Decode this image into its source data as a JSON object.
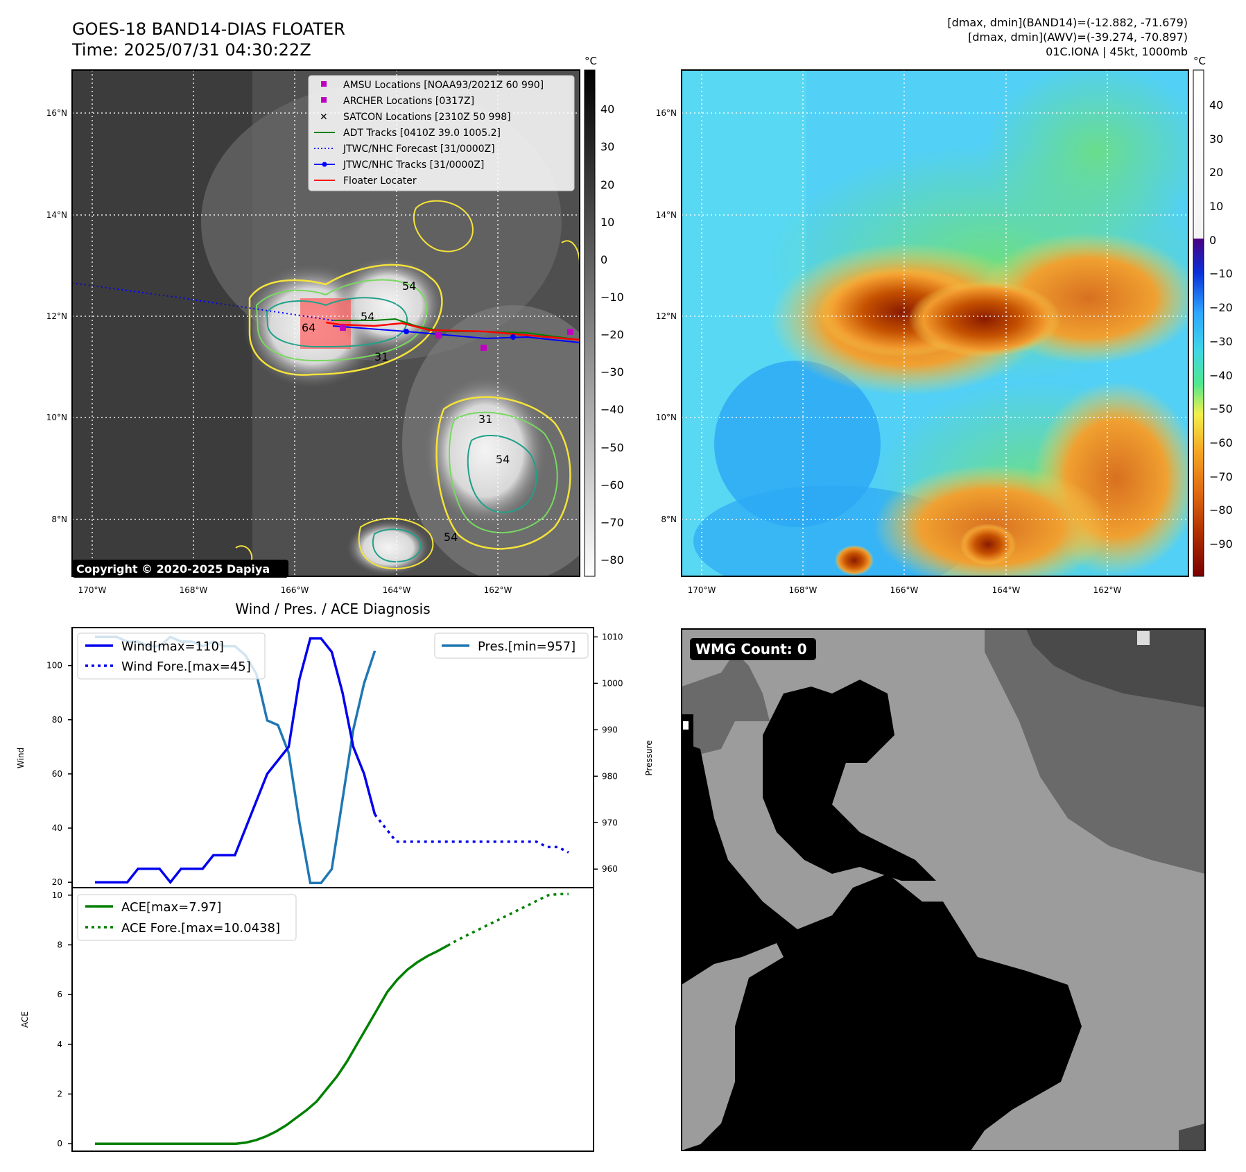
{
  "header": {
    "title_line1": "GOES-18 BAND14-DIAS FLOATER",
    "title_line2": "Time: 2025/07/31 04:30:22Z",
    "info_line1": "[dmax, dmin](BAND14)=(-12.882, -71.679)",
    "info_line2": "[dmax, dmin](AWV)=(-39.274, -70.897)",
    "info_line3": "01C.IONA | 45kt, 1000mb"
  },
  "copyright": "Copyright © 2020-2025 Dapiya",
  "map": {
    "lat_labels": [
      "16°N",
      "14°N",
      "12°N",
      "10°N",
      "8°N"
    ],
    "lon_labels": [
      "170°W",
      "168°W",
      "166°W",
      "164°W",
      "162°W"
    ],
    "contour_labels": [
      "64",
      "54",
      "54",
      "54",
      "31",
      "31",
      "54"
    ]
  },
  "legend_map": [
    {
      "label": "AMSU Locations [NOAA93/2021Z 60 990]",
      "color": "#bf00bf",
      "marker": "square"
    },
    {
      "label": "ARCHER Locations [0317Z]",
      "color": "#bf00bf",
      "marker": "square"
    },
    {
      "label": "SATCON Locations [2310Z 50 998]",
      "color": "#17becf",
      "marker": "x"
    },
    {
      "label": "ADT Tracks [0410Z 39.0 1005.2]",
      "color": "#008000",
      "marker": "line"
    },
    {
      "label": "JTWC/NHC Forecast [31/0000Z]",
      "color": "#0000ff",
      "marker": "dotted"
    },
    {
      "label": "JTWC/NHC Tracks [31/0000Z]",
      "color": "#0000ff",
      "marker": "line-dot"
    },
    {
      "label": "Floater Locater",
      "color": "#ff0000",
      "marker": "line"
    }
  ],
  "colorbar_left": {
    "unit": "°C",
    "ticks": [
      "40",
      "30",
      "20",
      "10",
      "0",
      "−10",
      "−20",
      "−30",
      "−40",
      "−50",
      "−60",
      "−70",
      "−80"
    ]
  },
  "colorbar_right": {
    "unit": "°C",
    "ticks": [
      "40",
      "30",
      "20",
      "10",
      "0",
      "−10",
      "−20",
      "−30",
      "−40",
      "−50",
      "−60",
      "−70",
      "−80",
      "−90"
    ]
  },
  "wmg": {
    "label": "WMG Count: 0"
  },
  "chart_data": [
    {
      "type": "line",
      "title": "Wind / Pres. / ACE Diagnosis",
      "ylabel": "Wind",
      "y2label": "Pressure",
      "ylim": [
        18,
        114
      ],
      "y2lim": [
        956,
        1012
      ],
      "yticks": [
        20,
        40,
        60,
        80,
        100
      ],
      "y2ticks": [
        960,
        970,
        980,
        990,
        1000,
        1010
      ],
      "legend_left": [
        "Wind[max=110]",
        "Wind Fore.[max=45]"
      ],
      "legend_right": [
        "Pres.[min=957]"
      ],
      "series": [
        {
          "name": "Wind[max=110]",
          "color": "#0000ee",
          "style": "solid",
          "values": [
            20,
            20,
            20,
            20,
            25,
            25,
            25,
            20,
            25,
            25,
            25,
            30,
            30,
            30,
            40,
            50,
            60,
            65,
            70,
            95,
            110,
            110,
            105,
            90,
            70,
            60,
            45
          ]
        },
        {
          "name": "Wind Fore.[max=45]",
          "color": "#0000ee",
          "style": "dotted",
          "values": [
            45,
            40,
            35,
            35,
            35,
            35,
            35,
            35,
            35,
            35,
            35,
            35,
            35,
            35,
            35,
            35,
            33,
            33,
            31
          ]
        },
        {
          "name": "Pres.[min=957]",
          "color": "#1f77b4",
          "style": "solid",
          "values": [
            1010,
            1010,
            1010,
            1009,
            1009,
            1008,
            1008,
            1010,
            1009,
            1009,
            1008,
            1009,
            1008,
            1008,
            1006,
            1002,
            992,
            991,
            985,
            970,
            957,
            957,
            960,
            975,
            990,
            1000,
            1007
          ]
        }
      ]
    },
    {
      "type": "line",
      "ylabel": "ACE",
      "ylim": [
        -0.3,
        10.3
      ],
      "yticks": [
        0,
        2,
        4,
        6,
        8,
        10
      ],
      "legend": [
        "ACE[max=7.97]",
        "ACE Fore.[max=10.0438]"
      ],
      "series": [
        {
          "name": "ACE[max=7.97]",
          "color": "#008000",
          "style": "solid",
          "values": [
            0,
            0,
            0,
            0,
            0,
            0,
            0,
            0,
            0,
            0,
            0,
            0,
            0,
            0,
            0,
            0.05,
            0.15,
            0.3,
            0.5,
            0.75,
            1.05,
            1.35,
            1.7,
            2.2,
            2.7,
            3.3,
            4.0,
            4.7,
            5.4,
            6.1,
            6.6,
            7.0,
            7.3,
            7.55,
            7.75,
            7.97
          ]
        },
        {
          "name": "ACE Fore.[max=10.0438]",
          "color": "#008000",
          "style": "dotted",
          "values": [
            7.97,
            8.2,
            8.4,
            8.6,
            8.8,
            9.0,
            9.2,
            9.4,
            9.6,
            9.8,
            10.0,
            10.04,
            10.04
          ]
        }
      ]
    }
  ]
}
